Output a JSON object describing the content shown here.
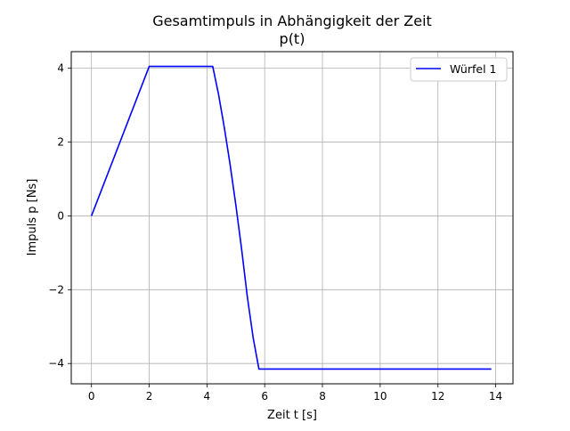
{
  "chart_data": {
    "type": "line",
    "title": "Gesamtimpuls in Abhängigkeit der Zeit",
    "subtitle": "p(t)",
    "xlabel": "Zeit t [s]",
    "ylabel": "Impuls p [Ns]",
    "xlim": [
      -0.7,
      14.6
    ],
    "ylim": [
      -4.55,
      4.45
    ],
    "x_ticks": [
      0,
      2,
      4,
      6,
      8,
      10,
      12,
      14
    ],
    "y_ticks": [
      -4,
      -2,
      0,
      2,
      4
    ],
    "x_tick_labels": [
      "0",
      "2",
      "4",
      "6",
      "8",
      "10",
      "12",
      "14"
    ],
    "y_tick_labels": [
      "−4",
      "−2",
      "0",
      "2",
      "4"
    ],
    "grid": true,
    "legend_position": "top-right",
    "series": [
      {
        "name": "Würfel 1",
        "color": "#0000ff",
        "x": [
          0,
          2,
          4.2,
          4.4,
          4.6,
          4.8,
          5.0,
          5.2,
          5.4,
          5.6,
          5.8,
          6,
          8,
          10,
          12,
          13.85
        ],
        "y": [
          0,
          4.05,
          4.05,
          3.3,
          2.4,
          1.4,
          0.3,
          -0.9,
          -2.2,
          -3.3,
          -4.15,
          -4.15,
          -4.15,
          -4.15,
          -4.15,
          -4.15
        ]
      }
    ]
  }
}
